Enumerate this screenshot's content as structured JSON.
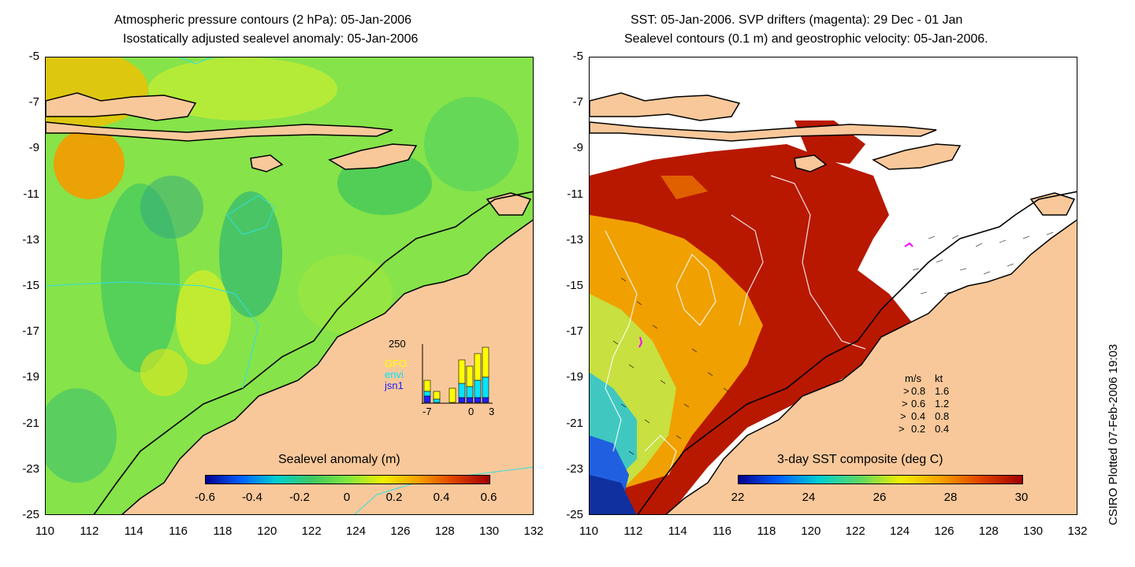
{
  "left_panel": {
    "title_line1": "Atmospheric pressure contours (2 hPa): 05-Jan-2006",
    "title_line2": "Isostatically adjusted sealevel anomaly: 05-Jan-2006",
    "colorbar_label": "Sealevel anomaly (m)",
    "colorbar_ticks": [
      "-0.6",
      "-0.4",
      "-0.2",
      "0",
      "0.2",
      "0.4",
      "0.6"
    ],
    "inset": {
      "ymax_label": "250",
      "x_ticks": [
        "-7",
        "0",
        "3"
      ],
      "legend": [
        {
          "label": "GFO",
          "color": "#ffff00"
        },
        {
          "label": "envi",
          "color": "#00e5ff"
        },
        {
          "label": "jsn1",
          "color": "#2020ff"
        }
      ]
    }
  },
  "right_panel": {
    "title_line1": "SST: 05-Jan-2006. SVP drifters (magenta): 29 Dec - 01 Jan",
    "title_line2": "Sealevel contours (0.1 m) and geostrophic velocity: 05-Jan-2006.",
    "colorbar_label": "3-day SST composite (deg C)",
    "colorbar_ticks": [
      "22",
      "24",
      "26",
      "28",
      "30"
    ],
    "velocity_legend": {
      "header_ms": "m/s",
      "header_kt": "kt",
      "rows": [
        {
          "ms": "0.8",
          "kt": "1.6"
        },
        {
          "ms": "0.6",
          "kt": "1.2"
        },
        {
          "ms": "0.4",
          "kt": "0.8"
        },
        {
          "ms": "0.2",
          "kt": "0.4"
        }
      ]
    }
  },
  "axes": {
    "lat_labels": [
      "-5",
      "-7",
      "-9",
      "-11",
      "-13",
      "-15",
      "-17",
      "-19",
      "-21",
      "-23",
      "-25"
    ],
    "lon_labels": [
      "110",
      "112",
      "114",
      "116",
      "118",
      "120",
      "122",
      "124",
      "126",
      "128",
      "130",
      "132"
    ]
  },
  "credit": "CSIRO Plotted 07-Feb-2006 19:03",
  "colors": {
    "land": "#f9c89a",
    "sla_ramp": [
      "#00008f",
      "#0060ff",
      "#00d0d0",
      "#40c860",
      "#80e840",
      "#f0f000",
      "#f8a000",
      "#e04000",
      "#a00000"
    ],
    "sst_ramp": [
      "#00008f",
      "#0060ff",
      "#00d0d0",
      "#60d860",
      "#f0f000",
      "#f8a000",
      "#e04000",
      "#a00000"
    ]
  }
}
